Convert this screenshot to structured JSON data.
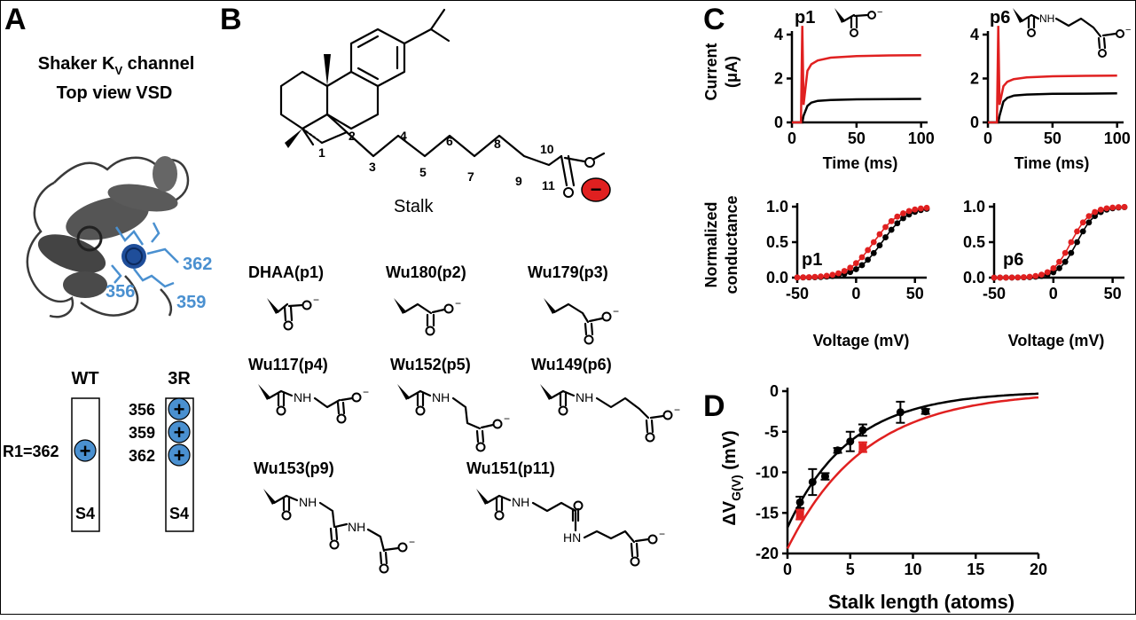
{
  "panels": {
    "a": "A",
    "b": "B",
    "c": "C",
    "d": "D"
  },
  "panel_a": {
    "title_line1": "Shaker K",
    "title_sub": "V",
    "title_line1_end": " channel",
    "title_line2": "Top view VSD",
    "residues": [
      "362",
      "356",
      "359"
    ],
    "wt_label": "WT",
    "r3_label": "3R",
    "wt_residue": "R1=362",
    "r3_residues": [
      "356",
      "359",
      "362"
    ],
    "s4_label": "S4",
    "plus": "+",
    "colors": {
      "blue": "#4a90d0",
      "gray": "#3a3a3a"
    }
  },
  "panel_b": {
    "atom_numbers": [
      "1",
      "2",
      "3",
      "4",
      "5",
      "6",
      "7",
      "8",
      "9",
      "10",
      "11"
    ],
    "stalk_label": "Stalk",
    "minus": "−",
    "compounds": [
      "DHAA(p1)",
      "Wu180(p2)",
      "Wu179(p3)",
      "Wu117(p4)",
      "Wu152(p5)",
      "Wu149(p6)",
      "Wu153(p9)",
      "Wu151(p11)"
    ],
    "atoms": {
      "nh": "NH",
      "hn": "HN",
      "o": "O",
      "charge": "−"
    },
    "colors": {
      "charge": "#e02020"
    }
  },
  "panel_c": {
    "top_left_label": "p1",
    "top_right_label": "p6",
    "current_ylabel_line1": "Current",
    "current_ylabel_line2": "(μA)",
    "time_xlabel": "Time (ms)",
    "conductance_ylabel_line1": "Normalized",
    "conductance_ylabel_line2": "conductance",
    "voltage_xlabel": "Voltage (mV)",
    "colors": {
      "control": "#000000",
      "compound": "#e02020"
    }
  },
  "chart_data": [
    {
      "type": "line",
      "title": "p1",
      "xlabel": "Time (ms)",
      "ylabel": "Current (μA)",
      "xlim": [
        0,
        105
      ],
      "ylim": [
        0,
        4
      ],
      "x_ticks": [
        "0",
        "50",
        "100"
      ],
      "y_ticks": [
        "0",
        "2",
        "4"
      ],
      "series": [
        {
          "color": "#000000",
          "x": [
            0,
            8,
            9,
            12,
            15,
            20,
            30,
            50,
            75,
            100
          ],
          "y": [
            0,
            0,
            0.3,
            0.75,
            0.9,
            0.98,
            1.02,
            1.05,
            1.06,
            1.07
          ]
        },
        {
          "color": "#e02020",
          "x": [
            0,
            7,
            8,
            9,
            12,
            15,
            20,
            30,
            50,
            75,
            100
          ],
          "y": [
            0,
            0,
            4.4,
            0.8,
            2.35,
            2.65,
            2.82,
            2.95,
            3.02,
            3.05,
            3.06
          ]
        }
      ]
    },
    {
      "type": "line",
      "title": "p6",
      "xlabel": "Time (ms)",
      "ylabel": "",
      "xlim": [
        0,
        105
      ],
      "ylim": [
        0,
        4
      ],
      "x_ticks": [
        "0",
        "50",
        "100"
      ],
      "y_ticks": [
        "0",
        "2",
        "4"
      ],
      "series": [
        {
          "color": "#000000",
          "x": [
            0,
            8,
            9,
            12,
            15,
            20,
            30,
            50,
            75,
            100
          ],
          "y": [
            0,
            0,
            0.3,
            0.95,
            1.12,
            1.22,
            1.27,
            1.3,
            1.31,
            1.32
          ]
        },
        {
          "color": "#e02020",
          "x": [
            0,
            7,
            8,
            9,
            12,
            15,
            20,
            30,
            50,
            75,
            100
          ],
          "y": [
            0,
            0,
            4.4,
            0.8,
            1.65,
            1.85,
            1.97,
            2.05,
            2.1,
            2.12,
            2.13
          ]
        }
      ]
    },
    {
      "type": "scatter",
      "title": "p1",
      "xlabel": "Voltage (mV)",
      "ylabel": "Normalized conductance",
      "xlim": [
        -50,
        60
      ],
      "ylim": [
        0,
        1
      ],
      "x_ticks": [
        "-50",
        "0",
        "50"
      ],
      "y_ticks": [
        "0.0",
        "0.5",
        "1.0"
      ],
      "series": [
        {
          "color": "#000000",
          "v_half": 22,
          "slope": 11,
          "x": [
            -50,
            -45,
            -40,
            -35,
            -30,
            -25,
            -20,
            -15,
            -10,
            -5,
            0,
            5,
            10,
            15,
            20,
            25,
            30,
            35,
            40,
            45,
            50,
            55,
            60
          ]
        },
        {
          "color": "#e02020",
          "v_half": 15,
          "slope": 11,
          "x": [
            -50,
            -45,
            -40,
            -35,
            -30,
            -25,
            -20,
            -15,
            -10,
            -5,
            0,
            5,
            10,
            15,
            20,
            25,
            30,
            35,
            40,
            45,
            50,
            55,
            60
          ]
        }
      ]
    },
    {
      "type": "scatter",
      "title": "p6",
      "xlabel": "Voltage (mV)",
      "ylabel": "",
      "xlim": [
        -50,
        60
      ],
      "ylim": [
        0,
        1
      ],
      "x_ticks": [
        "-50",
        "0",
        "50"
      ],
      "y_ticks": [
        "0.0",
        "0.5",
        "1.0"
      ],
      "series": [
        {
          "color": "#000000",
          "v_half": 20,
          "slope": 8,
          "x": [
            -50,
            -45,
            -40,
            -35,
            -30,
            -25,
            -20,
            -15,
            -10,
            -5,
            0,
            5,
            10,
            15,
            20,
            25,
            30,
            35,
            40,
            45,
            50,
            55,
            60
          ]
        },
        {
          "color": "#e02020",
          "v_half": 15,
          "slope": 8,
          "x": [
            -50,
            -45,
            -40,
            -35,
            -30,
            -25,
            -20,
            -15,
            -10,
            -5,
            0,
            5,
            10,
            15,
            20,
            25,
            30,
            35,
            40,
            45,
            50,
            55,
            60
          ]
        }
      ]
    },
    {
      "type": "scatter",
      "title": "",
      "xlabel": "Stalk length (atoms)",
      "ylabel_main": "ΔV",
      "ylabel_sub": "G(V)",
      "ylabel_unit": " (mV)",
      "xlim": [
        0,
        20
      ],
      "ylim": [
        -20,
        0
      ],
      "x_ticks": [
        "0",
        "5",
        "10",
        "15",
        "20"
      ],
      "y_ticks": [
        "-20",
        "-15",
        "-10",
        "-5",
        "0"
      ],
      "series": [
        {
          "color": "#000000",
          "points": [
            {
              "x": 1,
              "y": -13.7,
              "err": 0.7
            },
            {
              "x": 2,
              "y": -11.2,
              "err": 1.6
            },
            {
              "x": 3,
              "y": -10.5,
              "err": 0.4
            },
            {
              "x": 4,
              "y": -7.3,
              "err": 0.3
            },
            {
              "x": 5,
              "y": -6.2,
              "err": 1.2
            },
            {
              "x": 6,
              "y": -4.8,
              "err": 0.7
            },
            {
              "x": 9,
              "y": -2.6,
              "err": 1.3
            },
            {
              "x": 11,
              "y": -2.5,
              "err": 0.3
            }
          ],
          "fit": {
            "a": -16.8,
            "tau": 5.0
          }
        },
        {
          "color": "#e02020",
          "points": [
            {
              "x": 1,
              "y": -15.2,
              "err": 0.6
            },
            {
              "x": 6,
              "y": -6.9,
              "err": 0.6
            }
          ],
          "fit": {
            "a": -19.4,
            "tau": 6.2
          }
        }
      ]
    }
  ]
}
